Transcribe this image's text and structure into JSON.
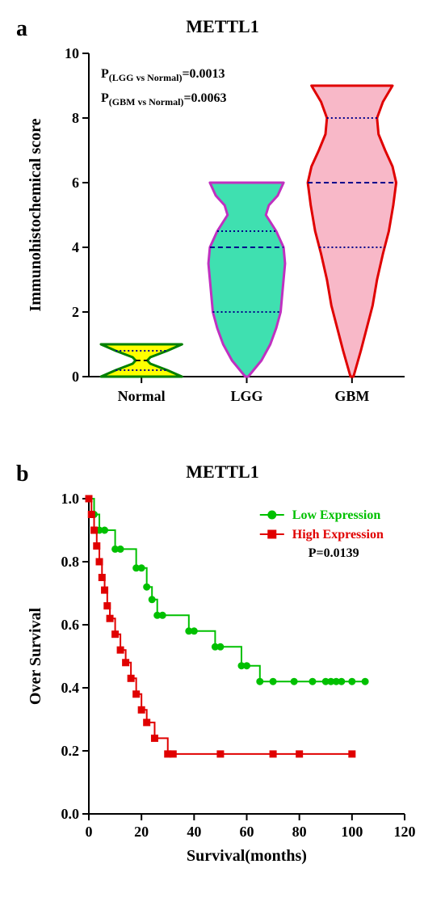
{
  "panelA": {
    "label": "a",
    "title": "METTL1",
    "ylabel": "Immunohistochemical score",
    "ylim": [
      0,
      10
    ],
    "ytick_step": 2,
    "categories": [
      "Normal",
      "LGG",
      "GBM"
    ],
    "pvalues": {
      "lgg_prefix": "P",
      "lgg_sub": "(LGG vs Normal)",
      "lgg_val": "=0.0013",
      "gbm_prefix": "P",
      "gbm_sub": "(GBM vs Normal)",
      "gbm_val": "=0.0063"
    },
    "violins": [
      {
        "name": "Normal",
        "fill": "#ffff00",
        "stroke": "#008000",
        "stroke_width": 3,
        "y_range": [
          0,
          1
        ],
        "median": 0.5,
        "q1": 0.2,
        "q3": 0.8,
        "median_dash_color": "#000000",
        "quartile_dot_color": "#00008b",
        "widths": [
          [
            0,
            0.55
          ],
          [
            0.2,
            0.35
          ],
          [
            0.4,
            0.12
          ],
          [
            0.5,
            0.08
          ],
          [
            0.6,
            0.12
          ],
          [
            0.8,
            0.35
          ],
          [
            1.0,
            0.55
          ]
        ]
      },
      {
        "name": "LGG",
        "fill": "#3fe0b0",
        "stroke": "#c030c0",
        "stroke_width": 3,
        "y_range": [
          0,
          6
        ],
        "median": 4.0,
        "q1": 2.0,
        "q3": 4.5,
        "median_dash_color": "#00008b",
        "quartile_dot_color": "#00008b",
        "widths": [
          [
            0,
            0.02
          ],
          [
            0.5,
            0.2
          ],
          [
            1.0,
            0.32
          ],
          [
            1.5,
            0.4
          ],
          [
            2.0,
            0.46
          ],
          [
            2.5,
            0.48
          ],
          [
            3.0,
            0.5
          ],
          [
            3.5,
            0.52
          ],
          [
            4.0,
            0.5
          ],
          [
            4.5,
            0.4
          ],
          [
            5.0,
            0.26
          ],
          [
            5.3,
            0.3
          ],
          [
            5.6,
            0.42
          ],
          [
            6.0,
            0.5
          ]
        ]
      },
      {
        "name": "GBM",
        "fill": "#f8b8c8",
        "stroke": "#e00000",
        "stroke_width": 3,
        "y_range": [
          0,
          9
        ],
        "median": 6.0,
        "q1": 4.0,
        "q3": 8.0,
        "median_dash_color": "#00008b",
        "quartile_dot_color": "#00008b",
        "widths": [
          [
            0,
            0.02
          ],
          [
            0.8,
            0.12
          ],
          [
            1.5,
            0.2
          ],
          [
            2.2,
            0.28
          ],
          [
            3.0,
            0.34
          ],
          [
            3.8,
            0.42
          ],
          [
            4.5,
            0.5
          ],
          [
            5.3,
            0.56
          ],
          [
            6.0,
            0.6
          ],
          [
            6.5,
            0.55
          ],
          [
            7.0,
            0.45
          ],
          [
            7.5,
            0.36
          ],
          [
            8.0,
            0.34
          ],
          [
            8.5,
            0.42
          ],
          [
            9.0,
            0.55
          ]
        ]
      }
    ]
  },
  "panelB": {
    "label": "b",
    "title": "METTL1",
    "ylabel": "Over Survival",
    "xlabel": "Survival(months)",
    "ylim": [
      0,
      1.0
    ],
    "ytick_step": 0.2,
    "xlim": [
      0,
      120
    ],
    "xtick_step": 20,
    "pvalue": "P=0.0139",
    "legend": {
      "low": {
        "label": "Low Expression",
        "color": "#00c000",
        "marker": "circle"
      },
      "high": {
        "label": "High Expression",
        "color": "#e00000",
        "marker": "square"
      }
    },
    "low_curve": {
      "color": "#00c000",
      "line_width": 2,
      "marker_size": 4,
      "points": [
        [
          0,
          1.0
        ],
        [
          2,
          0.95
        ],
        [
          4,
          0.9
        ],
        [
          6,
          0.9
        ],
        [
          10,
          0.84
        ],
        [
          12,
          0.84
        ],
        [
          18,
          0.78
        ],
        [
          20,
          0.78
        ],
        [
          22,
          0.72
        ],
        [
          24,
          0.68
        ],
        [
          26,
          0.63
        ],
        [
          28,
          0.63
        ],
        [
          38,
          0.58
        ],
        [
          40,
          0.58
        ],
        [
          48,
          0.53
        ],
        [
          50,
          0.53
        ],
        [
          58,
          0.47
        ],
        [
          60,
          0.47
        ],
        [
          65,
          0.42
        ],
        [
          70,
          0.42
        ],
        [
          78,
          0.42
        ],
        [
          85,
          0.42
        ],
        [
          90,
          0.42
        ],
        [
          92,
          0.42
        ],
        [
          94,
          0.42
        ],
        [
          96,
          0.42
        ],
        [
          100,
          0.42
        ],
        [
          105,
          0.42
        ]
      ],
      "censored": [
        85,
        88,
        90,
        92,
        94,
        96,
        100,
        105
      ]
    },
    "high_curve": {
      "color": "#e00000",
      "line_width": 2,
      "marker_size": 4,
      "points": [
        [
          0,
          1.0
        ],
        [
          1,
          0.95
        ],
        [
          2,
          0.9
        ],
        [
          3,
          0.85
        ],
        [
          4,
          0.8
        ],
        [
          5,
          0.75
        ],
        [
          6,
          0.71
        ],
        [
          7,
          0.66
        ],
        [
          8,
          0.62
        ],
        [
          10,
          0.57
        ],
        [
          12,
          0.52
        ],
        [
          14,
          0.48
        ],
        [
          16,
          0.43
        ],
        [
          18,
          0.38
        ],
        [
          20,
          0.33
        ],
        [
          22,
          0.29
        ],
        [
          25,
          0.24
        ],
        [
          30,
          0.19
        ],
        [
          32,
          0.19
        ],
        [
          50,
          0.19
        ],
        [
          70,
          0.19
        ],
        [
          80,
          0.19
        ],
        [
          100,
          0.19
        ]
      ],
      "censored": [
        50,
        70,
        80,
        100
      ]
    }
  }
}
